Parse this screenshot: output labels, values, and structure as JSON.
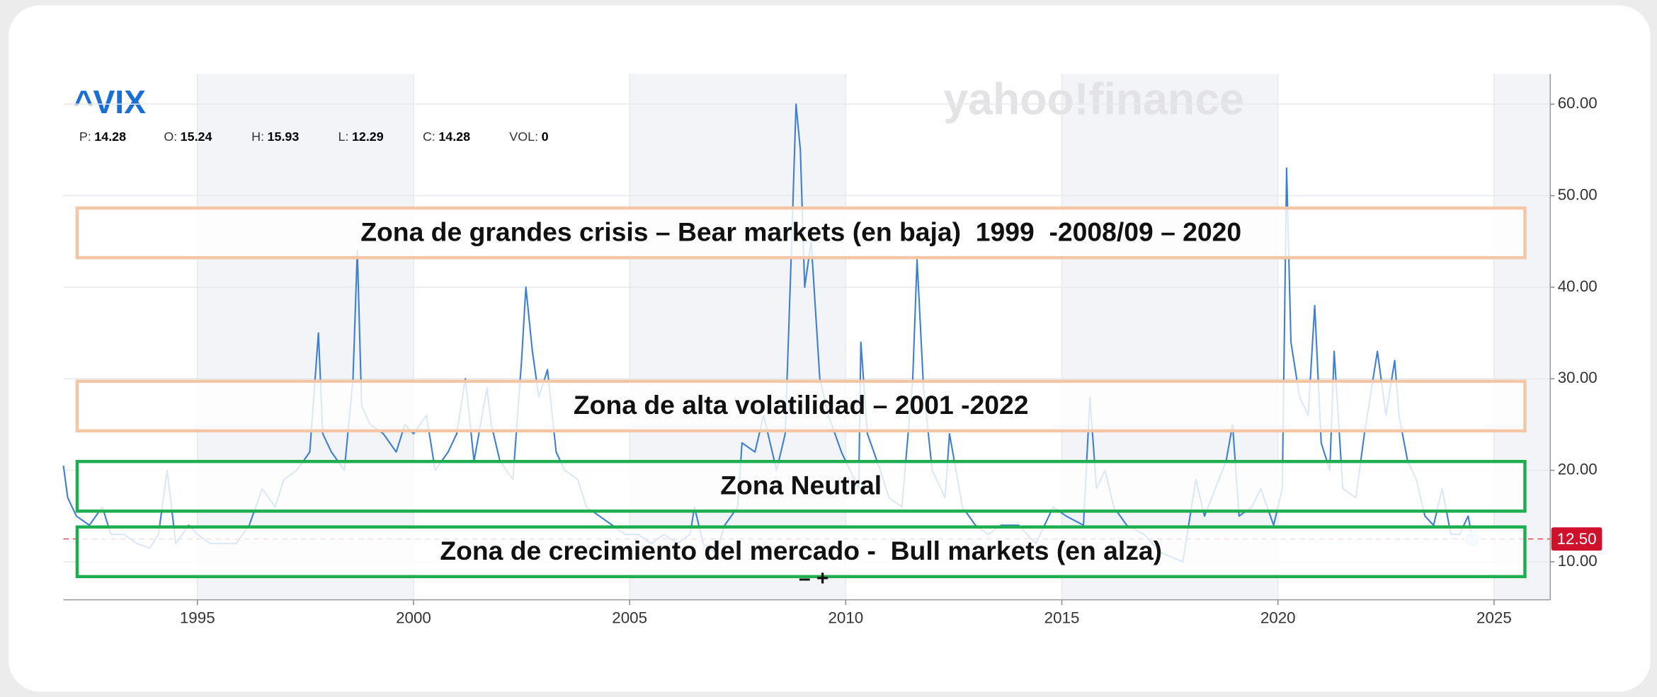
{
  "chart_data": {
    "type": "line",
    "title": "^VIX",
    "watermark": "yahoo!finance",
    "quote": [
      {
        "label": "P:",
        "value": 14.28
      },
      {
        "label": "O:",
        "value": 15.24
      },
      {
        "label": "H:",
        "value": 15.93
      },
      {
        "label": "L:",
        "value": 12.29
      },
      {
        "label": "C:",
        "value": 14.28
      },
      {
        "label": "VOL:",
        "value": 0
      }
    ],
    "annotations": [
      "Zona de grandes crisis – Bear markets (en baja)  1999  -2008/09 – 2020",
      "Zona de alta volatilidad – 2001 -2022",
      "Zona Neutral",
      "Zona de crecimiento del mercado -  Bull markets (en alza)"
    ],
    "zoom_controls": "– +",
    "color": "#3d7fd6",
    "x": [
      1991.9,
      1992.0,
      1992.2,
      1992.5,
      1992.8,
      1993.0,
      1993.3,
      1993.6,
      1993.9,
      1994.1,
      1994.3,
      1994.5,
      1994.8,
      1995.0,
      1995.3,
      1995.6,
      1995.9,
      1996.2,
      1996.5,
      1996.8,
      1997.0,
      1997.3,
      1997.6,
      1997.8,
      1997.9,
      1998.1,
      1998.4,
      1998.6,
      1998.7,
      1998.8,
      1999.0,
      1999.3,
      1999.6,
      1999.8,
      2000.0,
      2000.3,
      2000.5,
      2000.8,
      2001.0,
      2001.2,
      2001.4,
      2001.7,
      2001.8,
      2002.0,
      2002.3,
      2002.5,
      2002.6,
      2002.75,
      2002.9,
      2003.1,
      2003.3,
      2003.5,
      2003.8,
      2004.0,
      2004.3,
      2004.6,
      2004.9,
      2005.2,
      2005.5,
      2005.8,
      2006.1,
      2006.4,
      2006.5,
      2006.7,
      2007.0,
      2007.2,
      2007.5,
      2007.6,
      2007.9,
      2008.1,
      2008.4,
      2008.6,
      2008.75,
      2008.85,
      2008.95,
      2009.05,
      2009.2,
      2009.4,
      2009.6,
      2009.9,
      2010.1,
      2010.3,
      2010.35,
      2010.5,
      2010.8,
      2011.0,
      2011.3,
      2011.55,
      2011.65,
      2011.8,
      2012.0,
      2012.3,
      2012.4,
      2012.7,
      2013.0,
      2013.3,
      2013.6,
      2014.0,
      2014.4,
      2014.8,
      2015.1,
      2015.5,
      2015.65,
      2015.8,
      2016.0,
      2016.2,
      2016.5,
      2016.9,
      2017.3,
      2017.8,
      2018.1,
      2018.3,
      2018.8,
      2018.95,
      2019.1,
      2019.4,
      2019.6,
      2019.9,
      2020.1,
      2020.2,
      2020.3,
      2020.5,
      2020.7,
      2020.85,
      2021.0,
      2021.2,
      2021.3,
      2021.5,
      2021.8,
      2022.0,
      2022.2,
      2022.3,
      2022.5,
      2022.7,
      2022.8,
      2023.0,
      2023.2,
      2023.4,
      2023.6,
      2023.8,
      2024.0,
      2024.2,
      2024.4,
      2024.5
    ],
    "values": [
      20.5,
      17,
      15,
      14,
      16,
      13,
      13,
      12,
      11.5,
      13,
      20,
      12,
      14,
      13,
      12,
      12,
      12,
      14,
      18,
      16,
      19,
      20,
      22,
      35,
      24,
      22,
      20,
      30,
      44,
      27,
      25,
      24,
      22,
      25,
      24,
      26,
      20,
      22,
      24,
      30,
      21,
      29,
      25,
      21,
      19,
      32,
      40,
      33,
      28,
      31,
      22,
      20,
      19,
      16,
      15,
      14,
      13,
      13,
      12,
      13,
      12,
      13,
      16,
      12,
      11,
      14,
      16,
      23,
      22,
      26,
      20,
      24,
      45,
      60,
      55,
      40,
      45,
      30,
      26,
      22,
      20,
      18,
      34,
      24,
      20,
      17,
      16,
      30,
      43,
      29,
      20,
      17,
      24,
      16,
      14,
      13,
      14,
      14,
      12,
      16,
      15,
      14,
      28,
      18,
      20,
      16,
      14,
      13,
      11,
      10,
      19,
      15,
      21,
      25,
      15,
      16,
      18,
      14,
      18,
      53,
      34,
      28,
      26,
      38,
      23,
      20,
      33,
      18,
      17,
      24,
      30,
      33,
      26,
      32,
      26,
      21,
      19,
      15,
      14,
      18,
      13,
      13,
      15,
      12.5
    ],
    "current": {
      "value": 12.5,
      "label": "12.50"
    },
    "xlim": [
      1991.9,
      2026.3
    ],
    "xticks": [
      1995,
      2000,
      2005,
      2010,
      2015,
      2020,
      2025
    ],
    "ylim": [
      5.85,
      63.3
    ],
    "yticks": [
      {
        "value": 10,
        "label": "10.00"
      },
      {
        "value": 20,
        "label": "20.00"
      },
      {
        "value": 30,
        "label": "30.00"
      },
      {
        "value": 40,
        "label": "40.00"
      },
      {
        "value": 50,
        "label": "50.00"
      },
      {
        "value": 60,
        "label": "60.00"
      }
    ],
    "grid": true
  }
}
